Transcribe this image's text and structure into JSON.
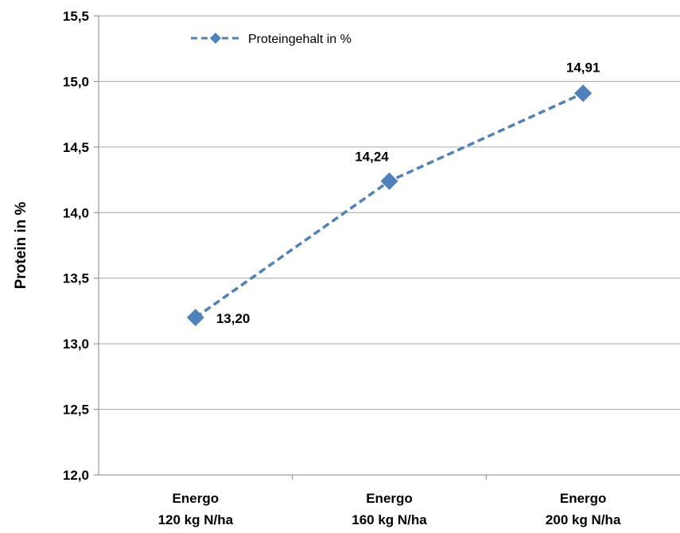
{
  "chart_data": {
    "type": "line",
    "categories": [
      [
        "Energo",
        "120 kg N/ha"
      ],
      [
        "Energo",
        "160 kg N/ha"
      ],
      [
        "Energo",
        "200 kg N/ha"
      ]
    ],
    "series": [
      {
        "name": "Proteingehalt in %",
        "values": [
          13.2,
          14.24,
          14.91
        ],
        "value_labels": [
          "13,20",
          "14,24",
          "14,91"
        ],
        "color": "#4f81bd",
        "line_style": "dashed",
        "marker": "diamond"
      }
    ],
    "ylabel": "Protein in %",
    "xlabel": "",
    "ylim": [
      12.0,
      15.5
    ],
    "y_ticks": [
      12.0,
      12.5,
      13.0,
      13.5,
      14.0,
      14.5,
      15.0,
      15.5
    ],
    "y_tick_labels": [
      "12,0",
      "12,5",
      "13,0",
      "13,5",
      "14,0",
      "14,5",
      "15,0",
      "15,5"
    ],
    "grid": "horizontal",
    "legend_position": "top-left"
  }
}
